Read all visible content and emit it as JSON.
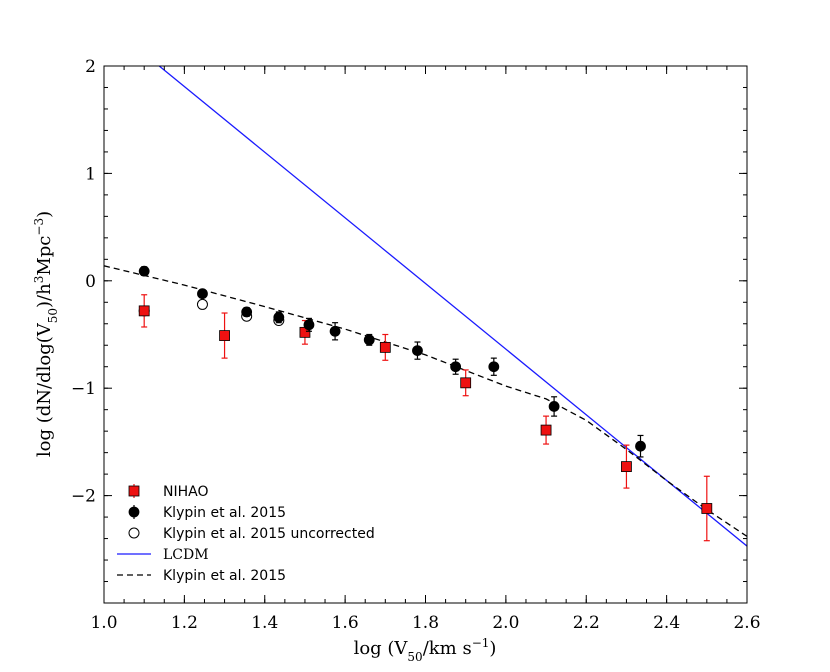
{
  "chart_data": {
    "type": "scatter",
    "xlabel": "log (V50/km s−1)",
    "ylabel": "log (dN/dlog(V50)/h3Mpc−3)",
    "xlim": [
      1.0,
      2.6
    ],
    "ylim": [
      -3.0,
      2.0
    ],
    "x_ticks": [
      1.0,
      1.2,
      1.4,
      1.6,
      1.8,
      2.0,
      2.2,
      2.4,
      2.6
    ],
    "x_tick_labels": [
      "1.0",
      "1.2",
      "1.4",
      "1.6",
      "1.8",
      "2.0",
      "2.2",
      "2.4",
      "2.6"
    ],
    "y_ticks": [
      2,
      1,
      0,
      -1,
      -2
    ],
    "y_tick_labels": [
      "2",
      "1",
      "0",
      "−1",
      "−2"
    ],
    "grid": false,
    "legend_position": "bottom-left",
    "series": [
      {
        "name": "NIHAO",
        "kind": "points",
        "marker": "square",
        "color": "#ee1111",
        "points": [
          {
            "x": 1.1,
            "y": -0.28,
            "err": 0.15
          },
          {
            "x": 1.3,
            "y": -0.51,
            "err": 0.21
          },
          {
            "x": 1.5,
            "y": -0.48,
            "err": 0.11
          },
          {
            "x": 1.7,
            "y": -0.62,
            "err": 0.12
          },
          {
            "x": 1.9,
            "y": -0.95,
            "err": 0.12
          },
          {
            "x": 2.1,
            "y": -1.39,
            "err": 0.13
          },
          {
            "x": 2.3,
            "y": -1.73,
            "err": 0.2
          },
          {
            "x": 2.5,
            "y": -2.12,
            "err": 0.3
          }
        ]
      },
      {
        "name": "Klypin et al. 2015",
        "kind": "points",
        "marker": "circle",
        "color": "#000000",
        "points": [
          {
            "x": 1.1,
            "y": 0.09,
            "err": 0.04
          },
          {
            "x": 1.245,
            "y": -0.12,
            "err": 0.03
          },
          {
            "x": 1.355,
            "y": -0.29,
            "err": 0.04
          },
          {
            "x": 1.435,
            "y": -0.34,
            "err": 0.05
          },
          {
            "x": 1.51,
            "y": -0.41,
            "err": 0.06
          },
          {
            "x": 1.575,
            "y": -0.47,
            "err": 0.08
          },
          {
            "x": 1.66,
            "y": -0.55,
            "err": 0.05
          },
          {
            "x": 1.78,
            "y": -0.65,
            "err": 0.08
          },
          {
            "x": 1.875,
            "y": -0.8,
            "err": 0.07
          },
          {
            "x": 1.97,
            "y": -0.8,
            "err": 0.08
          },
          {
            "x": 2.12,
            "y": -1.17,
            "err": 0.09
          },
          {
            "x": 2.335,
            "y": -1.54,
            "err": 0.1
          }
        ]
      },
      {
        "name": "Klypin et al. 2015 uncorrected",
        "kind": "points",
        "marker": "open-circle",
        "color": "#000000",
        "points": [
          {
            "x": 1.1,
            "y": -0.28
          },
          {
            "x": 1.245,
            "y": -0.22
          },
          {
            "x": 1.355,
            "y": -0.33
          },
          {
            "x": 1.435,
            "y": -0.37
          }
        ]
      },
      {
        "name": "LCDM",
        "kind": "line",
        "style": "solid",
        "color": "#1a1aff",
        "points": [
          [
            1.0,
            2.42
          ],
          [
            2.6,
            -2.47
          ]
        ]
      },
      {
        "name": "Klypin et al. 2015",
        "kind": "line",
        "style": "dashed",
        "color": "#000000",
        "points": [
          [
            1.0,
            0.14
          ],
          [
            1.2,
            -0.04
          ],
          [
            1.4,
            -0.24
          ],
          [
            1.6,
            -0.45
          ],
          [
            1.8,
            -0.69
          ],
          [
            2.0,
            -0.98
          ],
          [
            2.1,
            -1.1
          ],
          [
            2.2,
            -1.3
          ],
          [
            2.3,
            -1.57
          ],
          [
            2.4,
            -1.86
          ],
          [
            2.5,
            -2.13
          ],
          [
            2.6,
            -2.38
          ]
        ]
      }
    ]
  }
}
